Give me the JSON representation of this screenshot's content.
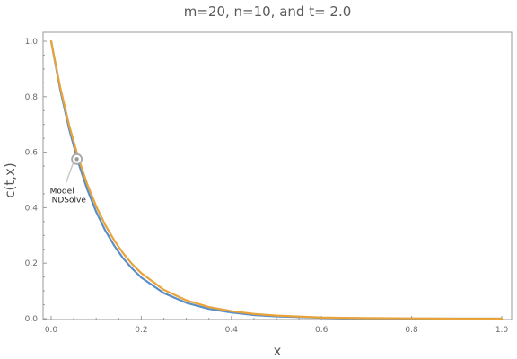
{
  "chart_data": {
    "type": "line",
    "title": "m=20, n=10, and t= 2.0",
    "xlabel": "x",
    "ylabel": "c(t,x)",
    "xlim": [
      0,
      1.0
    ],
    "ylim": [
      0,
      1.05
    ],
    "xticks": [
      "0.0",
      "0.2",
      "0.4",
      "0.6",
      "0.8",
      "1.0"
    ],
    "yticks": [
      "0.0",
      "0.2",
      "0.4",
      "0.6",
      "0.8",
      "1.0"
    ],
    "grid": false,
    "legend": "none",
    "series": [
      {
        "name": "Model",
        "color": "#5b8ec8",
        "x": [
          0.0,
          0.02,
          0.04,
          0.06,
          0.08,
          0.1,
          0.12,
          0.14,
          0.16,
          0.18,
          0.2,
          0.25,
          0.3,
          0.35,
          0.4,
          0.45,
          0.5,
          0.6,
          0.7,
          0.8,
          0.9,
          1.0
        ],
        "y": [
          1.0,
          0.826,
          0.683,
          0.564,
          0.466,
          0.385,
          0.318,
          0.263,
          0.217,
          0.18,
          0.148,
          0.092,
          0.057,
          0.035,
          0.022,
          0.013,
          0.008,
          0.003,
          0.001,
          0.0,
          0.0,
          0.0
        ]
      },
      {
        "name": "NDSolve",
        "color": "#e8a33a",
        "x": [
          0.0,
          0.02,
          0.04,
          0.06,
          0.08,
          0.1,
          0.12,
          0.14,
          0.16,
          0.18,
          0.2,
          0.25,
          0.3,
          0.35,
          0.4,
          0.45,
          0.5,
          0.6,
          0.7,
          0.8,
          0.9,
          1.0
        ],
        "y": [
          1.0,
          0.835,
          0.697,
          0.581,
          0.485,
          0.405,
          0.338,
          0.282,
          0.235,
          0.196,
          0.164,
          0.104,
          0.066,
          0.042,
          0.027,
          0.017,
          0.011,
          0.004,
          0.002,
          0.001,
          0.0,
          0.0
        ]
      }
    ],
    "annotation": {
      "point": [
        0.057,
        0.575
      ],
      "labels": [
        "Model",
        "NDSolve"
      ]
    }
  }
}
